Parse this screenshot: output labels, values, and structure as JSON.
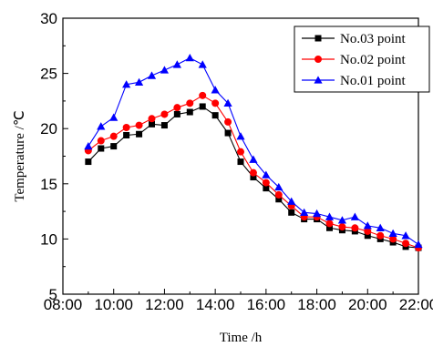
{
  "chart_data": {
    "type": "line",
    "xlabel": "Time /h",
    "ylabel": "Temperature /℃",
    "xlim": [
      "08:00",
      "22:00"
    ],
    "ylim": [
      5,
      30
    ],
    "x_ticks": [
      "08:00",
      "10:00",
      "12:00",
      "14:00",
      "16:00",
      "18:00",
      "20:00",
      "22:00"
    ],
    "y_ticks": [
      5,
      10,
      15,
      20,
      25,
      30
    ],
    "grid": false,
    "legend_position": "top-right",
    "x": [
      "09:00",
      "09:30",
      "10:00",
      "10:30",
      "11:00",
      "11:30",
      "12:00",
      "12:30",
      "13:00",
      "13:30",
      "14:00",
      "14:30",
      "15:00",
      "15:30",
      "16:00",
      "16:30",
      "17:00",
      "17:30",
      "18:00",
      "18:30",
      "19:00",
      "19:30",
      "20:00",
      "20:30",
      "21:00",
      "21:30",
      "22:00"
    ],
    "series": [
      {
        "name": "No.03 point",
        "color": "#000000",
        "marker": "square",
        "values": [
          17.0,
          18.2,
          18.4,
          19.4,
          19.5,
          20.4,
          20.3,
          21.3,
          21.5,
          22.0,
          21.2,
          19.6,
          17.0,
          15.6,
          14.6,
          13.6,
          12.4,
          11.8,
          11.8,
          11.0,
          10.8,
          10.7,
          10.3,
          10.0,
          9.7,
          9.3,
          9.2
        ]
      },
      {
        "name": "No.02 point",
        "color": "#ff0000",
        "marker": "circle",
        "values": [
          18.0,
          18.9,
          19.3,
          20.1,
          20.3,
          20.9,
          21.3,
          21.9,
          22.3,
          23.0,
          22.3,
          20.6,
          17.9,
          16.0,
          15.1,
          14.0,
          13.0,
          12.0,
          12.0,
          11.4,
          11.1,
          11.0,
          10.7,
          10.3,
          10.0,
          9.6,
          9.2
        ]
      },
      {
        "name": "No.01 point",
        "color": "#0000ff",
        "marker": "triangle",
        "values": [
          18.4,
          20.2,
          21.0,
          24.0,
          24.2,
          24.8,
          25.3,
          25.8,
          26.4,
          25.8,
          23.5,
          22.3,
          19.3,
          17.2,
          15.8,
          14.7,
          13.4,
          12.4,
          12.3,
          12.0,
          11.7,
          12.0,
          11.2,
          11.0,
          10.5,
          10.3,
          9.5
        ]
      }
    ]
  }
}
